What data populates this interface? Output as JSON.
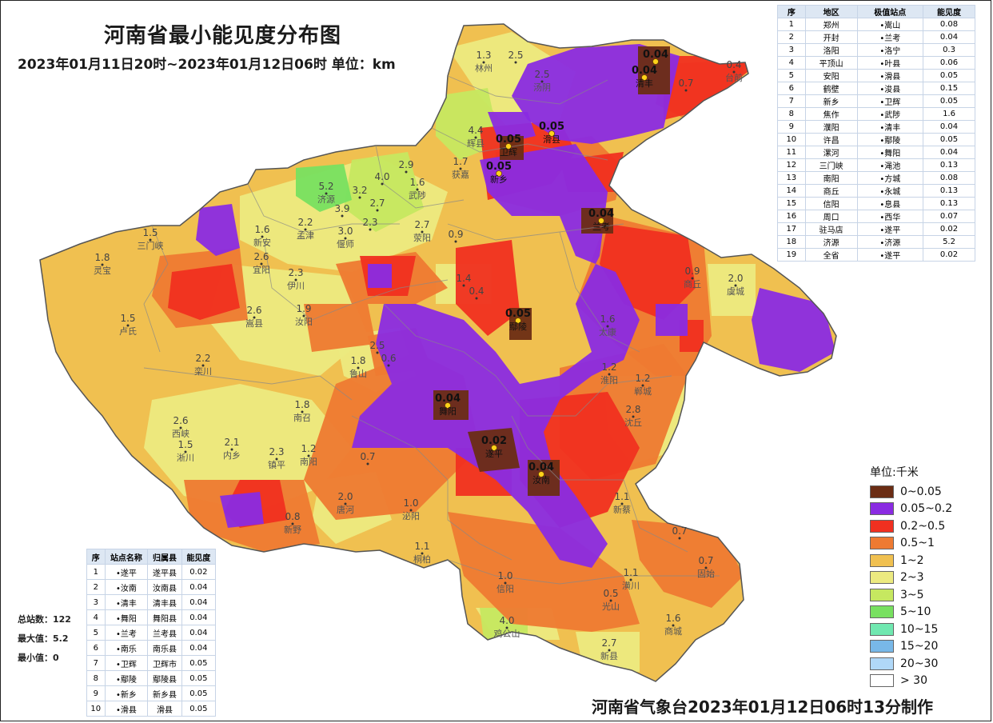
{
  "title": "河南省最小能见度分布图",
  "subtitle": "2023年01月11日20时~2023年01月12日06时 单位：km",
  "footer": "河南省气象台2023年01月12日06时13分制作",
  "colors": {
    "c0_005": "#6b2d14",
    "c005_02": "#8a2be2",
    "c02_05": "#f03020",
    "c05_1": "#ee7a32",
    "c1_2": "#f0c050",
    "c2_3": "#ecea80",
    "c3_5": "#c6e860",
    "c5_10": "#78e060",
    "c10_15": "#70e8b0",
    "c15_20": "#78b8e8",
    "c20_30": "#b0d8f8",
    "c30": "#ffffff"
  },
  "legend": {
    "title": "单位:千米",
    "items": [
      {
        "label": "0~0.05",
        "color": "#6b2d14"
      },
      {
        "label": "0.05~0.2",
        "color": "#8a2be2"
      },
      {
        "label": "0.2~0.5",
        "color": "#f03020"
      },
      {
        "label": "0.5~1",
        "color": "#ee7a32"
      },
      {
        "label": "1~2",
        "color": "#f0c050"
      },
      {
        "label": "2~3",
        "color": "#ecea80"
      },
      {
        "label": "3~5",
        "color": "#c6e860"
      },
      {
        "label": "5~10",
        "color": "#78e060"
      },
      {
        "label": "10~15",
        "color": "#70e8b0"
      },
      {
        "label": "15~20",
        "color": "#78b8e8"
      },
      {
        "label": "20~30",
        "color": "#b0d8f8"
      },
      {
        "label": "> 30",
        "color": "#ffffff"
      }
    ]
  },
  "rank_table": {
    "headers": [
      "序",
      "地区",
      "极值站点",
      "能见度"
    ],
    "rows": [
      [
        "1",
        "郑州",
        "•嵩山",
        "0.08"
      ],
      [
        "2",
        "开封",
        "•兰考",
        "0.04"
      ],
      [
        "3",
        "洛阳",
        "•洛宁",
        "0.3"
      ],
      [
        "4",
        "平顶山",
        "•叶县",
        "0.06"
      ],
      [
        "5",
        "安阳",
        "•滑县",
        "0.05"
      ],
      [
        "6",
        "鹤壁",
        "•浚县",
        "0.15"
      ],
      [
        "7",
        "新乡",
        "•卫辉",
        "0.05"
      ],
      [
        "8",
        "焦作",
        "•武陟",
        "1.6"
      ],
      [
        "9",
        "濮阳",
        "•清丰",
        "0.04"
      ],
      [
        "10",
        "许昌",
        "•鄢陵",
        "0.05"
      ],
      [
        "11",
        "漯河",
        "•舞阳",
        "0.04"
      ],
      [
        "12",
        "三门峡",
        "•渑池",
        "0.13"
      ],
      [
        "13",
        "南阳",
        "•方城",
        "0.08"
      ],
      [
        "14",
        "商丘",
        "•永城",
        "0.13"
      ],
      [
        "15",
        "信阳",
        "•息县",
        "0.13"
      ],
      [
        "16",
        "周口",
        "•西华",
        "0.07"
      ],
      [
        "17",
        "驻马店",
        "•遂平",
        "0.02"
      ],
      [
        "18",
        "济源",
        "•济源",
        "5.2"
      ],
      [
        "19",
        "全省",
        "•遂平",
        "0.02"
      ]
    ]
  },
  "station_table": {
    "headers": [
      "序",
      "站点名称",
      "归属县",
      "能见度"
    ],
    "rows": [
      [
        "1",
        "•遂平",
        "遂平县",
        "0.02"
      ],
      [
        "2",
        "•汝南",
        "汝南县",
        "0.04"
      ],
      [
        "3",
        "•清丰",
        "清丰县",
        "0.04"
      ],
      [
        "4",
        "•舞阳",
        "舞阳县",
        "0.04"
      ],
      [
        "5",
        "•兰考",
        "兰考县",
        "0.04"
      ],
      [
        "6",
        "•南乐",
        "南乐县",
        "0.04"
      ],
      [
        "7",
        "•卫辉",
        "卫辉市",
        "0.05"
      ],
      [
        "8",
        "•鄢陵",
        "鄢陵县",
        "0.05"
      ],
      [
        "9",
        "•新乡",
        "新乡县",
        "0.05"
      ],
      [
        "10",
        "•滑县",
        "滑县",
        "0.05"
      ]
    ]
  },
  "stats": {
    "total": "总站数：122",
    "max": "最大值：5.2",
    "min": "最小值：0"
  },
  "map_labels": [
    {
      "value": "1.3",
      "name": "林州"
    },
    {
      "value": "2.5",
      "name": ""
    },
    {
      "value": "2.5",
      "name": "汤阴"
    },
    {
      "value": "0.04",
      "name": ""
    },
    {
      "value": "0.04",
      "name": "清丰"
    },
    {
      "value": "0.7",
      "name": ""
    },
    {
      "value": "0.4",
      "name": "台前"
    },
    {
      "value": "4.4",
      "name": "辉县"
    },
    {
      "value": "0.05",
      "name": "卫辉"
    },
    {
      "value": "0.05",
      "name": "滑县"
    },
    {
      "value": "0.05",
      "name": "新乡"
    },
    {
      "value": "1.7",
      "name": "获嘉"
    },
    {
      "value": "2.9",
      "name": ""
    },
    {
      "value": "1.6",
      "name": "武陟"
    },
    {
      "value": "5.2",
      "name": "济源"
    },
    {
      "value": "4.0",
      "name": ""
    },
    {
      "value": "3.2",
      "name": ""
    },
    {
      "value": "3.9",
      "name": ""
    },
    {
      "value": "2.7",
      "name": ""
    },
    {
      "value": "2.3",
      "name": ""
    },
    {
      "value": "2.7",
      "name": "荥阳"
    },
    {
      "value": "0.04",
      "name": "兰考"
    },
    {
      "value": "0.9",
      "name": ""
    },
    {
      "value": "1.5",
      "name": "三门峡"
    },
    {
      "value": "1.6",
      "name": "新安"
    },
    {
      "value": "2.2",
      "name": "孟津"
    },
    {
      "value": "3.0",
      "name": "偃师"
    },
    {
      "value": "1.8",
      "name": "灵宝"
    },
    {
      "value": "2.6",
      "name": "宜阳"
    },
    {
      "value": "2.3",
      "name": "伊川"
    },
    {
      "value": "1.4",
      "name": ""
    },
    {
      "value": "0.4",
      "name": ""
    },
    {
      "value": "0.9",
      "name": "商丘"
    },
    {
      "value": "2.0",
      "name": "虞城"
    },
    {
      "value": "1.5",
      "name": "卢氏"
    },
    {
      "value": "2.6",
      "name": "嵩县"
    },
    {
      "value": "1.9",
      "name": "汝阳"
    },
    {
      "value": "0.05",
      "name": "鄢陵"
    },
    {
      "value": "1.6",
      "name": "太康"
    },
    {
      "value": "2.2",
      "name": "栾川"
    },
    {
      "value": "1.8",
      "name": "鲁山"
    },
    {
      "value": "2.5",
      "name": ""
    },
    {
      "value": "0.6",
      "name": ""
    },
    {
      "value": "1.2",
      "name": "淮阳"
    },
    {
      "value": "1.2",
      "name": "郸城"
    },
    {
      "value": "0.04",
      "name": "舞阳"
    },
    {
      "value": "1.8",
      "name": "南召"
    },
    {
      "value": "2.8",
      "name": "沈丘"
    },
    {
      "value": "2.6",
      "name": "西峡"
    },
    {
      "value": "1.5",
      "name": "淅川"
    },
    {
      "value": "2.1",
      "name": "内乡"
    },
    {
      "value": "2.3",
      "name": "镇平"
    },
    {
      "value": "1.2",
      "name": "南阳"
    },
    {
      "value": "0.02",
      "name": "遂平"
    },
    {
      "value": "0.04",
      "name": "汝南"
    },
    {
      "value": "0.7",
      "name": ""
    },
    {
      "value": "0.8",
      "name": "新野"
    },
    {
      "value": "2.0",
      "name": "唐河"
    },
    {
      "value": "1.0",
      "name": "泌阳"
    },
    {
      "value": "1.1",
      "name": "新蔡"
    },
    {
      "value": "0.7",
      "name": ""
    },
    {
      "value": "0.7",
      "name": "固始"
    },
    {
      "value": "1.1",
      "name": "桐柏"
    },
    {
      "value": "1.0",
      "name": "信阳"
    },
    {
      "value": "1.1",
      "name": "潢川"
    },
    {
      "value": "0.5",
      "name": "光山"
    },
    {
      "value": "1.6",
      "name": "商城"
    },
    {
      "value": "4.0",
      "name": "鸡公山"
    },
    {
      "value": "2.7",
      "name": "新县"
    }
  ]
}
